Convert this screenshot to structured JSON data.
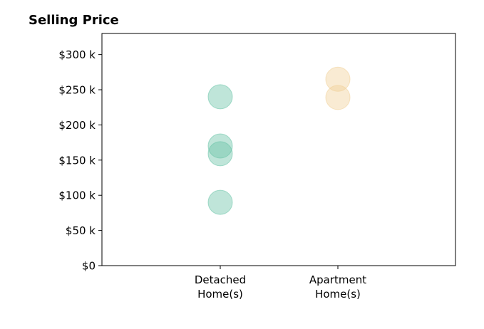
{
  "chart_data": {
    "type": "scatter",
    "title": "Selling Price",
    "xlabel": "",
    "ylabel": "",
    "categories": [
      [
        "Detached",
        "Home(s)"
      ],
      [
        "Apartment",
        "Home(s)"
      ]
    ],
    "ylim": [
      0,
      330000
    ],
    "yticks": [
      0,
      50000,
      100000,
      150000,
      200000,
      250000,
      300000
    ],
    "ytick_labels": [
      "$0",
      "$50 k",
      "$100 k",
      "$150 k",
      "$200 k",
      "$250 k",
      "$300 k"
    ],
    "grid": false,
    "series": [
      {
        "category_index": 0,
        "color": "#66c2a5",
        "values": [
          240000,
          170000,
          159000,
          90000
        ]
      },
      {
        "category_index": 1,
        "color": "#f0d095",
        "values": [
          265000,
          239000
        ]
      }
    ]
  }
}
